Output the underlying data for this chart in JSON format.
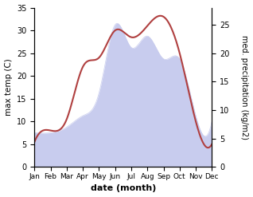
{
  "months": [
    "Jan",
    "Feb",
    "Mar",
    "Apr",
    "May",
    "Jun",
    "Jul",
    "Aug",
    "Sep",
    "Oct",
    "Nov",
    "Dec"
  ],
  "temperature": [
    5.5,
    8.0,
    10.5,
    22.0,
    24.0,
    30.0,
    28.5,
    31.0,
    33.0,
    25.0,
    10.0,
    5.0
  ],
  "precipitation": [
    6,
    6,
    7,
    9,
    13,
    25,
    21,
    23,
    19,
    19,
    9,
    8
  ],
  "temp_color": "#b04040",
  "precip_fill_color": "#c8ccee",
  "ylabel_left": "max temp (C)",
  "ylabel_right": "med. precipitation (kg/m2)",
  "xlabel": "date (month)",
  "ylim_left": [
    0,
    35
  ],
  "ylim_right": [
    0,
    28
  ],
  "right_yticks": [
    0,
    5,
    10,
    15,
    20,
    25
  ]
}
